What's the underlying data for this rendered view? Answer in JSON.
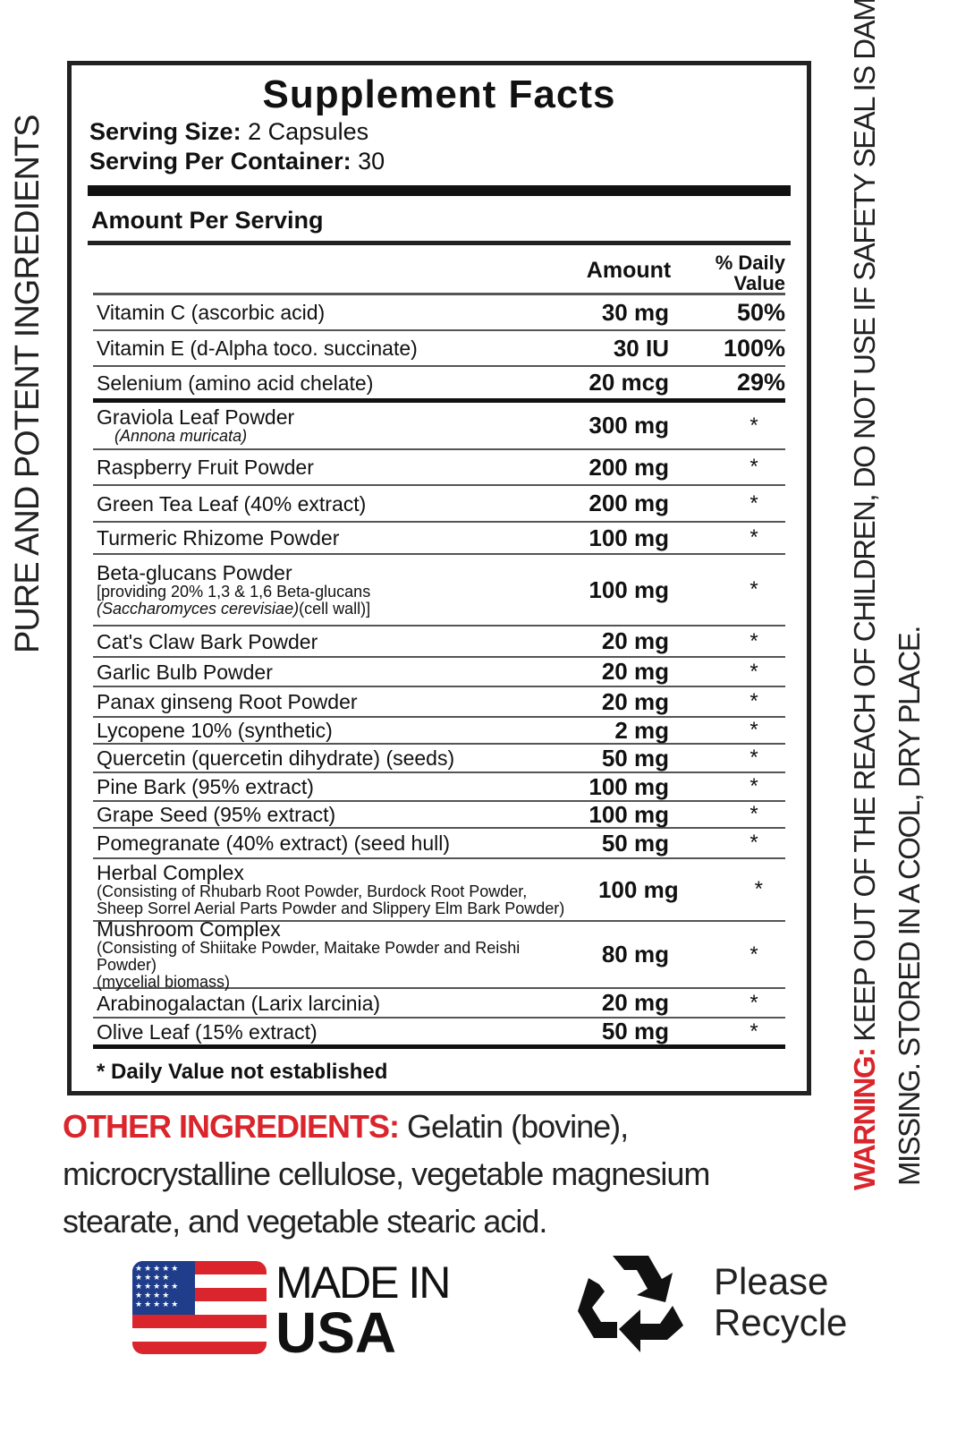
{
  "side_text": "PURE AND POTENT INGREDIENTS",
  "warning": {
    "label": "WARNING:",
    "line1": "KEEP OUT OF THE REACH OF CHILDREN, DO NOT USE IF SAFETY SEAL IS DAMAGED OR",
    "line2": "MISSING. STORED IN A COOL, DRY PLACE."
  },
  "panel": {
    "title": "Supplement Facts",
    "serving_size_label": "Serving Size:",
    "serving_size": "2 Capsules",
    "servings_label": "Serving Per Container:",
    "servings": "30",
    "amount_per_serving": "Amount Per Serving",
    "col_amount": "Amount",
    "col_dv": "% Daily Value",
    "vitamins": [
      {
        "name": "Vitamin C (ascorbic acid)",
        "amount": "30 mg",
        "dv": "50%"
      },
      {
        "name": "Vitamin E (d-Alpha toco. succinate)",
        "amount": "30 IU",
        "dv": "100%"
      },
      {
        "name": "Selenium (amino acid chelate)",
        "amount": "20 mcg",
        "dv": "29%"
      }
    ],
    "ingredients": [
      {
        "name": "Graviola Leaf Powder",
        "sub": "(Annona muricata)",
        "amount": "300 mg",
        "dv": "*"
      },
      {
        "name": "Raspberry Fruit Powder",
        "amount": "200 mg",
        "dv": "*"
      },
      {
        "name": "Green Tea Leaf (40% extract)",
        "amount": "200 mg",
        "dv": "*"
      },
      {
        "name": "Turmeric Rhizome Powder",
        "amount": "100 mg",
        "dv": "*"
      },
      {
        "name": "Beta-glucans Powder",
        "sub": "[providing 20% 1,3 & 1,6 Beta-glucans",
        "sub2": "(Saccharomyces cerevisiae)",
        "sub2b": "(cell wall)]",
        "amount": "100 mg",
        "dv": "*"
      },
      {
        "name": "Cat's Claw Bark Powder",
        "amount": "20 mg",
        "dv": "*"
      },
      {
        "name": "Garlic Bulb Powder",
        "amount": "20 mg",
        "dv": "*"
      },
      {
        "name": "Panax ginseng Root Powder",
        "amount": "20 mg",
        "dv": "*"
      },
      {
        "name": "Lycopene 10% (synthetic)",
        "amount": "2 mg",
        "dv": "*"
      },
      {
        "name": "Quercetin (quercetin dihydrate) (seeds)",
        "amount": "50 mg",
        "dv": "*"
      },
      {
        "name": "Pine Bark (95% extract)",
        "amount": "100 mg",
        "dv": "*"
      },
      {
        "name": "Grape Seed (95% extract)",
        "amount": "100 mg",
        "dv": "*"
      },
      {
        "name": "Pomegranate (40% extract) (seed hull)",
        "amount": "50 mg",
        "dv": "*"
      },
      {
        "name": "Herbal Complex",
        "sub": "(Consisting of Rhubarb Root Powder, Burdock Root Powder,",
        "sub2": "Sheep Sorrel Aerial Parts Powder and Slippery Elm Bark Powder)",
        "amount": "100 mg",
        "dv": "*"
      },
      {
        "name": "Mushroom Complex",
        "sub": "(Consisting of Shiitake Powder, Maitake Powder and Reishi Powder)",
        "sub2": "(mycelial biomass)",
        "amount": "80 mg",
        "dv": "*"
      },
      {
        "name": "Arabinogalactan (Larix larcinia)",
        "amount": "20 mg",
        "dv": "*"
      },
      {
        "name": "Olive Leaf (15% extract)",
        "amount": "50 mg",
        "dv": "*"
      }
    ],
    "footnote": "* Daily Value not established"
  },
  "other": {
    "label": "OTHER INGREDIENTS:",
    "text": " Gelatin (bovine), microcrystalline cellulose, vegetable magnesium stearate, and vegetable stearic acid."
  },
  "made_in": {
    "line1": "MADE IN",
    "line2": "USA",
    "icon": "us-flag-icon"
  },
  "recycle": {
    "line1": "Please",
    "line2": "Recycle",
    "icon": "recycle-icon"
  },
  "colors": {
    "accent_red": "#d9252b",
    "flag_blue": "#1f3d8a"
  }
}
